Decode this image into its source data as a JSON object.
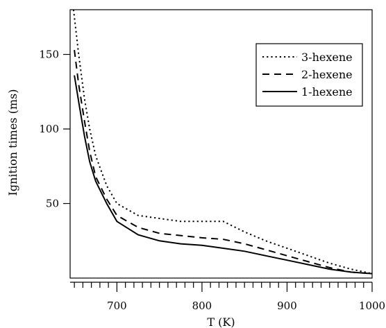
{
  "chart_data": {
    "type": "line",
    "xlabel": "T (K)",
    "ylabel": "Ignition times (ms)",
    "xlim": [
      645,
      1000
    ],
    "ylim": [
      0,
      180
    ],
    "x_ticks": [
      700,
      800,
      900,
      1000
    ],
    "y_ticks": [
      50,
      100,
      150
    ],
    "x_tick_labels": [
      "700",
      "800",
      "900",
      "1000"
    ],
    "y_tick_labels": [
      "50",
      "100",
      "150"
    ],
    "grid": false,
    "legend_position": "top-right",
    "series": [
      {
        "name": "3-hexene",
        "dash": "dotted",
        "x": [
          649,
          655,
          662,
          668,
          675,
          688,
          700,
          725,
          775,
          825,
          850,
          875,
          900,
          925,
          950,
          975,
          1000
        ],
        "y": [
          180,
          150,
          120,
          100,
          82,
          62,
          50,
          42,
          38,
          38,
          31,
          25,
          20,
          15,
          10,
          6,
          3
        ]
      },
      {
        "name": "2-hexene",
        "dash": "dashed",
        "x": [
          650,
          655,
          662,
          668,
          675,
          688,
          700,
          725,
          750,
          800,
          825,
          850,
          875,
          900,
          925,
          950,
          975,
          1000
        ],
        "y": [
          153,
          130,
          105,
          85,
          68,
          53,
          42,
          34,
          30,
          27,
          26,
          23,
          19,
          15,
          11,
          7,
          4,
          3
        ]
      },
      {
        "name": "1-hexene",
        "dash": "solid",
        "x": [
          650,
          656,
          662,
          668,
          675,
          688,
          700,
          725,
          750,
          775,
          800,
          825,
          850,
          875,
          900,
          925,
          950,
          975,
          1000
        ],
        "y": [
          136,
          115,
          95,
          78,
          65,
          50,
          38,
          29,
          25,
          23,
          22,
          20,
          18,
          15,
          12,
          9,
          6,
          4,
          3
        ]
      }
    ]
  }
}
